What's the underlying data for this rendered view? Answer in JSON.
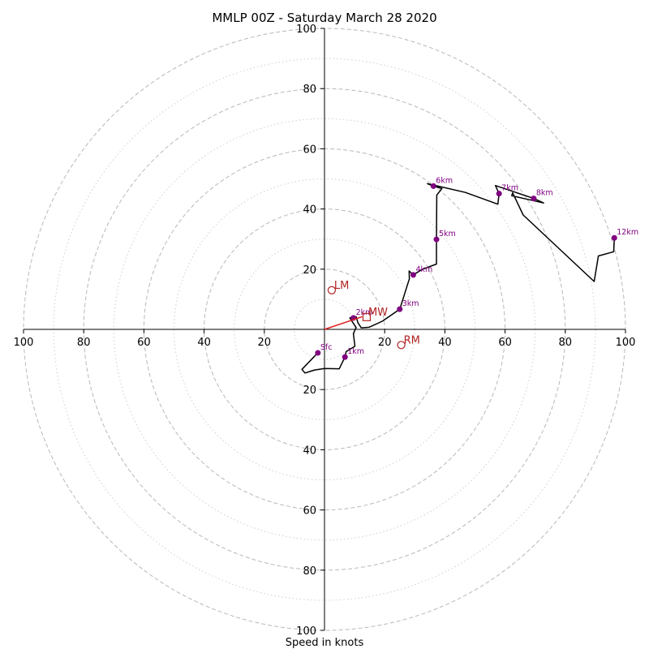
{
  "chart_data": {
    "type": "hodograph",
    "title": "MMLP 00Z - Saturday March 28 2020",
    "xlabel": "Speed in knots",
    "xlim": [
      -100,
      100
    ],
    "ylim": [
      -100,
      100
    ],
    "ring_major": [
      20,
      40,
      60,
      80,
      100
    ],
    "ring_minor": [
      10,
      30,
      50,
      70,
      90
    ],
    "x_ticks": [
      {
        "value": -100,
        "label": "100"
      },
      {
        "value": -80,
        "label": "80"
      },
      {
        "value": -60,
        "label": "60"
      },
      {
        "value": -40,
        "label": "40"
      },
      {
        "value": -20,
        "label": "20"
      },
      {
        "value": 20,
        "label": "20"
      },
      {
        "value": 40,
        "label": "40"
      },
      {
        "value": 60,
        "label": "60"
      },
      {
        "value": 80,
        "label": "80"
      },
      {
        "value": 100,
        "label": "100"
      }
    ],
    "y_ticks": [
      {
        "value": 100,
        "label": "100"
      },
      {
        "value": 80,
        "label": "80"
      },
      {
        "value": 60,
        "label": "60"
      },
      {
        "value": 40,
        "label": "40"
      },
      {
        "value": 20,
        "label": "20"
      },
      {
        "value": -20,
        "label": "20"
      },
      {
        "value": -40,
        "label": "40"
      },
      {
        "value": -60,
        "label": "60"
      },
      {
        "value": -80,
        "label": "80"
      },
      {
        "value": -100,
        "label": "100"
      }
    ],
    "grid": true,
    "wind_profile": [
      [
        -2.2,
        -7.8
      ],
      [
        -7.5,
        -13.3
      ],
      [
        -6.5,
        -14.5
      ],
      [
        -3.3,
        -13.5
      ],
      [
        0,
        -13
      ],
      [
        4.9,
        -13.1
      ],
      [
        6.8,
        -9.2
      ],
      [
        7.2,
        -7.4
      ],
      [
        10.1,
        -5.6
      ],
      [
        9.6,
        -1.4
      ],
      [
        10.5,
        0.6
      ],
      [
        8.4,
        3.8
      ],
      [
        10.5,
        4.2
      ],
      [
        11.1,
        2.2
      ],
      [
        12.2,
        0.5
      ],
      [
        14.8,
        0.7
      ],
      [
        19.2,
        2.7
      ],
      [
        25,
        6.7
      ],
      [
        28.2,
        16.8
      ],
      [
        28.1,
        19.4
      ],
      [
        29.5,
        18.1
      ],
      [
        32.4,
        19.9
      ],
      [
        37.2,
        21.7
      ],
      [
        37.2,
        29.9
      ],
      [
        37.3,
        44.6
      ],
      [
        39,
        46.8
      ],
      [
        36.2,
        47.6
      ],
      [
        34.2,
        48.4
      ],
      [
        46.8,
        45.5
      ],
      [
        57.6,
        41.6
      ],
      [
        58,
        45.1
      ],
      [
        56.8,
        47.8
      ],
      [
        69.5,
        43.5
      ],
      [
        72.8,
        42
      ],
      [
        62.2,
        44.4
      ],
      [
        62.5,
        45.4
      ],
      [
        66,
        38
      ],
      [
        89.6,
        15.9
      ],
      [
        91,
        24.4
      ],
      [
        96.1,
        25.8
      ],
      [
        96.3,
        30.4
      ]
    ],
    "height_markers": [
      {
        "label": "Sfc",
        "u": -2.2,
        "v": -7.8
      },
      {
        "label": "1km",
        "u": 6.8,
        "v": -9.2
      },
      {
        "label": "2km",
        "u": 9.6,
        "v": 3.8
      },
      {
        "label": "3km",
        "u": 25,
        "v": 6.7
      },
      {
        "label": "4km",
        "u": 29.5,
        "v": 18.1
      },
      {
        "label": "5km",
        "u": 37.2,
        "v": 29.9
      },
      {
        "label": "6km",
        "u": 36.2,
        "v": 47.6
      },
      {
        "label": "7km",
        "u": 58,
        "v": 45.1
      },
      {
        "label": "8km",
        "u": 69.5,
        "v": 43.5
      },
      {
        "label": "12km",
        "u": 96.3,
        "v": 30.4
      }
    ],
    "storm_motion": {
      "rm": {
        "label": "RM",
        "u": 25.5,
        "v": -5.2
      },
      "lm": {
        "label": "LM",
        "u": 2.4,
        "v": 13
      },
      "mw": {
        "label": "MW",
        "u": 14,
        "v": 4.1
      },
      "shear_vector": [
        [
          0,
          0
        ],
        [
          12.5,
          4.2
        ]
      ]
    },
    "colors": {
      "profile_line": "#000000",
      "height_marker": "#800080",
      "storm_motion": "#b22222",
      "shear_vector": "#e32020",
      "ring_major": "#b8b8b8",
      "ring_minor": "#cfcfcf",
      "axis": "#000000"
    }
  }
}
